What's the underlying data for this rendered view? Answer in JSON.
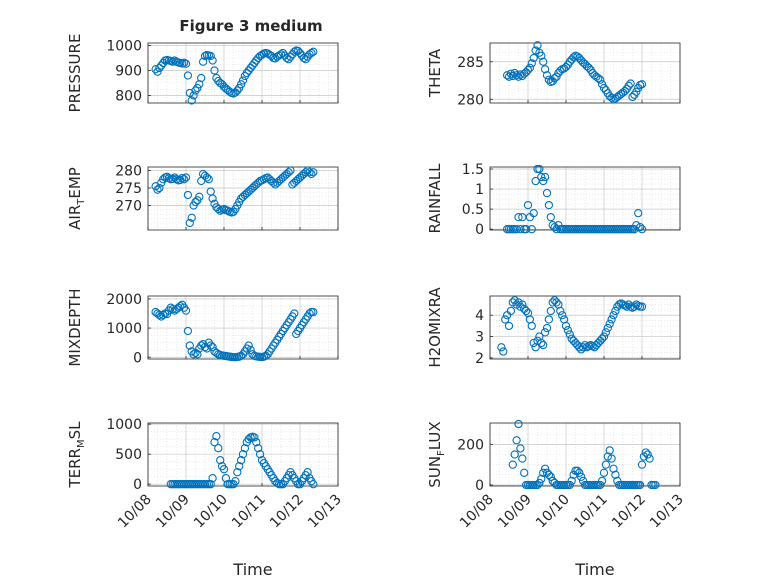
{
  "figure_title": "Figure 3 medium",
  "marker_color": "#0072BD",
  "x_tick_labels": [
    "10/08",
    "10/09",
    "10/10",
    "10/11",
    "10/12",
    "10/13"
  ],
  "x_label": "Time",
  "chart_data": [
    {
      "type": "scatter",
      "panel": "pressure",
      "ylabel": "PRESSURE",
      "xlim": [
        0,
        5
      ],
      "ylim": [
        770,
        1010
      ],
      "yticks": [
        800,
        900,
        1000
      ],
      "x": [
        0.2,
        0.25,
        0.3,
        0.35,
        0.4,
        0.45,
        0.5,
        0.55,
        0.6,
        0.65,
        0.7,
        0.75,
        0.8,
        0.85,
        0.9,
        0.95,
        1.0,
        1.05,
        1.1,
        1.15,
        1.2,
        1.25,
        1.3,
        1.35,
        1.4,
        1.45,
        1.5,
        1.55,
        1.6,
        1.65,
        1.7,
        1.75,
        1.8,
        1.85,
        1.9,
        1.95,
        2.0,
        2.05,
        2.1,
        2.15,
        2.2,
        2.25,
        2.3,
        2.35,
        2.4,
        2.45,
        2.5,
        2.55,
        2.6,
        2.65,
        2.7,
        2.75,
        2.8,
        2.85,
        2.9,
        2.95,
        3.0,
        3.05,
        3.1,
        3.15,
        3.2,
        3.25,
        3.3,
        3.35,
        3.4,
        3.45,
        3.5,
        3.55,
        3.6,
        3.65,
        3.7,
        3.75,
        3.8,
        3.85,
        3.9,
        3.95,
        4.0,
        4.05,
        4.1,
        4.15,
        4.2,
        4.25,
        4.3,
        4.35
      ],
      "values": [
        905,
        895,
        910,
        920,
        930,
        940,
        942,
        940,
        938,
        935,
        940,
        935,
        932,
        930,
        928,
        931,
        927,
        880,
        810,
        780,
        800,
        820,
        830,
        845,
        870,
        935,
        958,
        962,
        960,
        958,
        940,
        900,
        870,
        858,
        850,
        845,
        835,
        828,
        822,
        815,
        810,
        808,
        812,
        820,
        830,
        845,
        860,
        878,
        890,
        900,
        910,
        920,
        930,
        940,
        950,
        958,
        963,
        968,
        970,
        968,
        963,
        958,
        950,
        948,
        955,
        960,
        965,
        970,
        960,
        950,
        945,
        955,
        965,
        975,
        980,
        978,
        970,
        960,
        950,
        945,
        955,
        965,
        970,
        975
      ]
    },
    {
      "type": "scatter",
      "panel": "theta",
      "ylabel": "THETA",
      "xlim": [
        0,
        5
      ],
      "ylim": [
        279.5,
        287.5
      ],
      "yticks": [
        280,
        285
      ],
      "x": [
        0.45,
        0.5,
        0.55,
        0.6,
        0.65,
        0.7,
        0.75,
        0.8,
        0.85,
        0.9,
        0.95,
        1.0,
        1.05,
        1.1,
        1.15,
        1.2,
        1.25,
        1.3,
        1.35,
        1.4,
        1.45,
        1.5,
        1.55,
        1.6,
        1.65,
        1.7,
        1.75,
        1.8,
        1.85,
        1.9,
        1.95,
        2.0,
        2.05,
        2.1,
        2.15,
        2.2,
        2.25,
        2.3,
        2.35,
        2.4,
        2.45,
        2.5,
        2.55,
        2.6,
        2.65,
        2.7,
        2.75,
        2.8,
        2.85,
        2.9,
        2.95,
        3.0,
        3.05,
        3.1,
        3.15,
        3.2,
        3.25,
        3.3,
        3.35,
        3.4,
        3.45,
        3.5,
        3.55,
        3.6,
        3.65,
        3.7,
        3.75,
        3.8,
        3.85,
        3.9,
        3.95,
        4.0
      ],
      "values": [
        283.2,
        283.0,
        283.4,
        283.1,
        283.5,
        283.2,
        283.0,
        283.3,
        283.1,
        283.4,
        283.6,
        283.9,
        284.2,
        284.8,
        285.5,
        286.5,
        287.2,
        286.2,
        285.8,
        285.0,
        284.0,
        283.2,
        282.6,
        282.3,
        282.4,
        282.8,
        283.0,
        283.5,
        283.8,
        284.0,
        284.1,
        284.3,
        284.6,
        285.0,
        285.3,
        285.6,
        285.8,
        285.7,
        285.5,
        285.2,
        284.9,
        284.7,
        284.4,
        284.2,
        283.9,
        283.5,
        283.2,
        283.0,
        282.8,
        282.6,
        282.0,
        281.5,
        281.2,
        280.8,
        280.4,
        280.2,
        280.0,
        280.1,
        280.3,
        280.5,
        280.7,
        280.9,
        281.1,
        281.4,
        281.8,
        282.1,
        280.3,
        280.6,
        281.0,
        281.5,
        281.9,
        282.0
      ]
    },
    {
      "type": "scatter",
      "panel": "air_temp",
      "ylabel": "AIR_TEMP",
      "xlim": [
        0,
        5
      ],
      "ylim": [
        263,
        281
      ],
      "yticks": [
        270,
        275,
        280
      ],
      "x": [
        0.2,
        0.25,
        0.3,
        0.35,
        0.4,
        0.45,
        0.5,
        0.55,
        0.6,
        0.65,
        0.7,
        0.75,
        0.8,
        0.85,
        0.9,
        0.95,
        1.0,
        1.05,
        1.1,
        1.15,
        1.2,
        1.25,
        1.3,
        1.35,
        1.4,
        1.45,
        1.5,
        1.55,
        1.6,
        1.65,
        1.7,
        1.75,
        1.8,
        1.85,
        1.9,
        1.95,
        2.0,
        2.05,
        2.1,
        2.15,
        2.2,
        2.25,
        2.3,
        2.35,
        2.4,
        2.45,
        2.5,
        2.55,
        2.6,
        2.65,
        2.7,
        2.75,
        2.8,
        2.85,
        2.9,
        2.95,
        3.0,
        3.05,
        3.1,
        3.15,
        3.2,
        3.25,
        3.3,
        3.35,
        3.4,
        3.45,
        3.5,
        3.55,
        3.6,
        3.65,
        3.7,
        3.75,
        3.8,
        3.85,
        3.9,
        3.95,
        4.0,
        4.05,
        4.1,
        4.15,
        4.2,
        4.25,
        4.3,
        4.35
      ],
      "values": [
        275.5,
        274.5,
        275.0,
        276.5,
        277.5,
        278.0,
        278.2,
        277.8,
        277.5,
        277.6,
        278.0,
        277.5,
        277.2,
        277.3,
        277.8,
        277.5,
        278.0,
        273.0,
        265.0,
        266.5,
        270.0,
        271.0,
        271.5,
        272.5,
        277.0,
        279.0,
        278.5,
        278.0,
        277.5,
        274.0,
        272.0,
        270.5,
        269.5,
        269.0,
        268.5,
        268.8,
        269.0,
        268.7,
        268.5,
        268.2,
        268.0,
        268.2,
        269.0,
        270.0,
        271.0,
        272.0,
        272.5,
        273.0,
        273.5,
        274.0,
        274.5,
        275.0,
        275.5,
        276.0,
        276.5,
        277.0,
        277.2,
        277.5,
        277.8,
        278.0,
        277.5,
        277.0,
        276.5,
        276.0,
        276.5,
        277.0,
        277.5,
        278.0,
        278.5,
        279.0,
        279.5,
        280.0,
        276.0,
        276.5,
        277.0,
        277.5,
        278.0,
        278.5,
        279.0,
        279.5,
        280.0,
        279.5,
        279.0,
        279.5
      ]
    },
    {
      "type": "scatter",
      "panel": "rainfall",
      "ylabel": "RAINFALL",
      "xlim": [
        0,
        5
      ],
      "ylim": [
        -0.02,
        1.55
      ],
      "yticks": [
        0,
        0.5,
        1,
        1.5
      ],
      "x": [
        0.45,
        0.5,
        0.55,
        0.6,
        0.65,
        0.7,
        0.75,
        0.8,
        0.85,
        0.9,
        0.95,
        1.0,
        1.05,
        1.1,
        1.15,
        1.2,
        1.25,
        1.3,
        1.35,
        1.4,
        1.45,
        1.5,
        1.55,
        1.6,
        1.65,
        1.7,
        1.75,
        1.8,
        1.85,
        1.9,
        1.95,
        2.0,
        2.05,
        2.1,
        2.15,
        2.2,
        2.25,
        2.3,
        2.35,
        2.4,
        2.45,
        2.5,
        2.55,
        2.6,
        2.65,
        2.7,
        2.75,
        2.8,
        2.85,
        2.9,
        2.95,
        3.0,
        3.05,
        3.1,
        3.15,
        3.2,
        3.25,
        3.3,
        3.35,
        3.4,
        3.45,
        3.5,
        3.55,
        3.6,
        3.65,
        3.7,
        3.75,
        3.8,
        3.85,
        3.9,
        3.95,
        4.0
      ],
      "values": [
        0,
        0,
        0,
        0,
        0,
        0,
        0.3,
        0,
        0.3,
        0,
        0,
        0.6,
        0.3,
        0,
        0.4,
        1.2,
        1.5,
        1.5,
        1.3,
        1.2,
        1.3,
        0.9,
        0.6,
        0.3,
        0.1,
        0.05,
        0,
        0.1,
        0,
        0,
        0,
        0,
        0,
        0,
        0,
        0,
        0,
        0,
        0,
        0,
        0,
        0,
        0,
        0,
        0,
        0,
        0,
        0,
        0,
        0,
        0,
        0,
        0,
        0,
        0,
        0,
        0,
        0,
        0,
        0,
        0,
        0,
        0,
        0,
        0,
        0,
        0,
        0,
        0.1,
        0.4,
        0.05,
        0
      ]
    },
    {
      "type": "scatter",
      "panel": "mixdepth",
      "ylabel": "MIXDEPTH",
      "xlim": [
        0,
        5
      ],
      "ylim": [
        -60,
        2100
      ],
      "yticks": [
        0,
        1000,
        2000
      ],
      "x": [
        0.2,
        0.25,
        0.3,
        0.35,
        0.4,
        0.45,
        0.5,
        0.55,
        0.6,
        0.65,
        0.7,
        0.75,
        0.8,
        0.85,
        0.9,
        0.95,
        1.0,
        1.05,
        1.1,
        1.15,
        1.2,
        1.25,
        1.3,
        1.35,
        1.4,
        1.45,
        1.5,
        1.55,
        1.6,
        1.65,
        1.7,
        1.75,
        1.8,
        1.85,
        1.9,
        1.95,
        2.0,
        2.05,
        2.1,
        2.15,
        2.2,
        2.25,
        2.3,
        2.35,
        2.4,
        2.45,
        2.5,
        2.55,
        2.6,
        2.65,
        2.7,
        2.75,
        2.8,
        2.85,
        2.9,
        2.95,
        3.0,
        3.05,
        3.1,
        3.15,
        3.2,
        3.25,
        3.3,
        3.35,
        3.4,
        3.45,
        3.5,
        3.55,
        3.6,
        3.65,
        3.7,
        3.75,
        3.8,
        3.85,
        3.9,
        3.95,
        4.0,
        4.05,
        4.1,
        4.15,
        4.2,
        4.25,
        4.3,
        4.35
      ],
      "values": [
        1550,
        1500,
        1450,
        1400,
        1450,
        1500,
        1480,
        1600,
        1700,
        1650,
        1600,
        1650,
        1700,
        1750,
        1800,
        1700,
        1600,
        900,
        400,
        200,
        100,
        150,
        100,
        300,
        400,
        450,
        350,
        300,
        500,
        400,
        350,
        200,
        150,
        100,
        80,
        60,
        50,
        40,
        30,
        20,
        10,
        5,
        0,
        10,
        20,
        50,
        100,
        200,
        300,
        400,
        250,
        100,
        50,
        30,
        20,
        10,
        5,
        20,
        50,
        100,
        200,
        300,
        400,
        500,
        600,
        700,
        800,
        900,
        1000,
        1100,
        1200,
        1300,
        1400,
        1500,
        800,
        900,
        1000,
        1100,
        1200,
        1300,
        1400,
        1500,
        1550,
        1550
      ]
    },
    {
      "type": "scatter",
      "panel": "h2omixra",
      "ylabel": "H2OMIXRA",
      "xlim": [
        0,
        5
      ],
      "ylim": [
        1.95,
        4.9
      ],
      "yticks": [
        2,
        3,
        4
      ],
      "x": [
        0.3,
        0.35,
        0.4,
        0.45,
        0.5,
        0.55,
        0.6,
        0.65,
        0.7,
        0.75,
        0.8,
        0.85,
        0.9,
        0.95,
        1.0,
        1.05,
        1.1,
        1.15,
        1.2,
        1.25,
        1.3,
        1.35,
        1.4,
        1.45,
        1.5,
        1.55,
        1.6,
        1.65,
        1.7,
        1.75,
        1.8,
        1.85,
        1.9,
        1.95,
        2.0,
        2.05,
        2.1,
        2.15,
        2.2,
        2.25,
        2.3,
        2.35,
        2.4,
        2.45,
        2.5,
        2.55,
        2.6,
        2.65,
        2.7,
        2.75,
        2.8,
        2.85,
        2.9,
        2.95,
        3.0,
        3.05,
        3.1,
        3.15,
        3.2,
        3.25,
        3.3,
        3.35,
        3.4,
        3.45,
        3.5,
        3.55,
        3.6,
        3.65,
        3.7,
        3.75,
        3.8,
        3.85,
        3.9,
        3.95,
        4.0
      ],
      "values": [
        2.5,
        2.3,
        3.8,
        4.0,
        3.5,
        4.2,
        4.6,
        4.7,
        4.5,
        4.6,
        4.4,
        4.5,
        4.3,
        4.2,
        4.1,
        3.8,
        3.5,
        2.7,
        2.5,
        2.8,
        3.0,
        2.7,
        2.6,
        3.2,
        3.4,
        3.8,
        4.2,
        4.6,
        4.7,
        4.6,
        4.5,
        4.2,
        4.0,
        3.8,
        3.5,
        3.3,
        3.1,
        2.9,
        2.8,
        2.7,
        2.6,
        2.5,
        2.4,
        2.5,
        2.6,
        2.5,
        2.55,
        2.6,
        2.55,
        2.5,
        2.6,
        2.7,
        2.8,
        2.9,
        3.0,
        3.2,
        3.4,
        3.6,
        3.8,
        4.0,
        4.2,
        4.4,
        4.5,
        4.55,
        4.5,
        4.45,
        4.4,
        4.5,
        4.4,
        4.35,
        4.4,
        4.5,
        4.45,
        4.4,
        4.4
      ]
    },
    {
      "type": "scatter",
      "panel": "terr_msl",
      "ylabel": "TERR_MSL",
      "xlim": [
        0,
        5
      ],
      "ylim": [
        -30,
        1020
      ],
      "yticks": [
        0,
        500,
        1000
      ],
      "x": [
        0.6,
        0.65,
        0.7,
        0.75,
        0.8,
        0.85,
        0.9,
        0.95,
        1.0,
        1.05,
        1.1,
        1.15,
        1.2,
        1.25,
        1.3,
        1.35,
        1.4,
        1.45,
        1.5,
        1.55,
        1.6,
        1.65,
        1.7,
        1.75,
        1.8,
        1.85,
        1.9,
        1.95,
        2.0,
        2.05,
        2.1,
        2.15,
        2.2,
        2.25,
        2.3,
        2.35,
        2.4,
        2.45,
        2.5,
        2.55,
        2.6,
        2.65,
        2.7,
        2.75,
        2.8,
        2.85,
        2.9,
        2.95,
        3.0,
        3.05,
        3.1,
        3.15,
        3.2,
        3.25,
        3.3,
        3.35,
        3.4,
        3.45,
        3.5,
        3.55,
        3.6,
        3.65,
        3.7,
        3.75,
        3.8,
        3.85,
        3.9,
        3.95,
        4.0,
        4.05,
        4.1,
        4.15,
        4.2,
        4.25,
        4.3,
        4.35
      ],
      "values": [
        0,
        0,
        0,
        0,
        0,
        0,
        0,
        0,
        0,
        0,
        0,
        0,
        0,
        0,
        0,
        0,
        0,
        0,
        0,
        0,
        0,
        0,
        100,
        700,
        800,
        600,
        400,
        300,
        250,
        100,
        0,
        0,
        0,
        0,
        50,
        200,
        300,
        400,
        500,
        600,
        700,
        750,
        780,
        790,
        780,
        700,
        600,
        500,
        400,
        350,
        300,
        250,
        200,
        150,
        100,
        50,
        20,
        0,
        0,
        0,
        50,
        100,
        150,
        200,
        150,
        100,
        50,
        0,
        0,
        50,
        100,
        150,
        200,
        100,
        50,
        0
      ]
    },
    {
      "type": "scatter",
      "panel": "sun_flux",
      "ylabel": "SUN_FLUX",
      "xlim": [
        0,
        5
      ],
      "ylim": [
        -5,
        305
      ],
      "yticks": [
        0,
        200
      ],
      "x": [
        0.6,
        0.65,
        0.7,
        0.75,
        0.8,
        0.85,
        0.9,
        0.95,
        1.0,
        1.05,
        1.1,
        1.15,
        1.2,
        1.25,
        1.3,
        1.35,
        1.4,
        1.45,
        1.5,
        1.55,
        1.6,
        1.65,
        1.7,
        1.75,
        1.8,
        1.85,
        1.9,
        1.95,
        2.0,
        2.05,
        2.1,
        2.15,
        2.2,
        2.25,
        2.3,
        2.35,
        2.4,
        2.45,
        2.5,
        2.55,
        2.6,
        2.65,
        2.7,
        2.75,
        2.8,
        2.85,
        2.9,
        2.95,
        3.0,
        3.05,
        3.1,
        3.15,
        3.2,
        3.25,
        3.3,
        3.35,
        3.4,
        3.45,
        3.5,
        3.55,
        3.6,
        3.65,
        3.7,
        3.75,
        3.8,
        3.85,
        3.9,
        3.95,
        4.0,
        4.05,
        4.1,
        4.15,
        4.2,
        4.25,
        4.3,
        4.35
      ],
      "values": [
        100,
        150,
        220,
        300,
        180,
        130,
        60,
        0,
        0,
        0,
        0,
        0,
        0,
        0,
        10,
        30,
        60,
        80,
        60,
        50,
        40,
        20,
        10,
        0,
        0,
        0,
        0,
        0,
        0,
        0,
        0,
        20,
        50,
        70,
        70,
        60,
        40,
        20,
        0,
        0,
        0,
        0,
        0,
        0,
        0,
        0,
        0,
        20,
        60,
        100,
        140,
        170,
        130,
        80,
        50,
        20,
        0,
        0,
        0,
        0,
        0,
        0,
        0,
        0,
        0,
        0,
        0,
        0,
        100,
        140,
        160,
        150,
        130,
        0,
        0,
        0
      ]
    }
  ]
}
